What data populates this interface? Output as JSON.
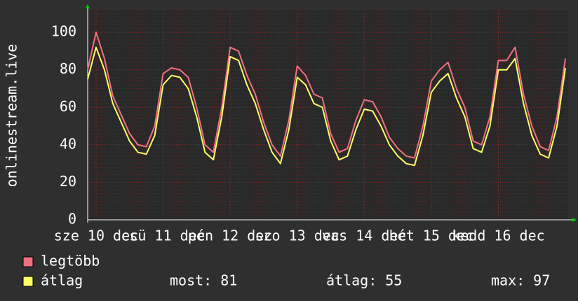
{
  "chart_data": {
    "type": "line",
    "y_label": "onlinestream.live",
    "x": [
      0,
      3,
      6,
      9,
      12,
      15,
      18,
      21,
      24,
      27,
      30,
      33,
      36,
      39,
      42,
      45,
      48,
      51,
      54,
      57,
      60,
      63,
      66,
      69,
      72,
      75,
      78,
      81,
      84,
      87,
      90,
      93,
      96,
      99,
      102,
      105,
      108,
      111,
      114,
      117,
      120,
      123,
      126,
      129,
      132,
      135,
      138,
      141,
      144,
      147,
      150,
      153,
      156,
      159,
      162,
      165,
      168,
      171
    ],
    "xlim": [
      0,
      172
    ],
    "xticks": [
      {
        "value": 3,
        "label": "sze 10 dec"
      },
      {
        "value": 27,
        "label": "csü 11 dec"
      },
      {
        "value": 51,
        "label": "pén 12 dec"
      },
      {
        "value": 75,
        "label": "szo 13 dec"
      },
      {
        "value": 99,
        "label": "vas 14 dec"
      },
      {
        "value": 123,
        "label": "hét 15 dec"
      },
      {
        "value": 147,
        "label": "kedd 16 dec"
      }
    ],
    "ylim": [
      0,
      112
    ],
    "yticks": [
      0,
      20,
      40,
      60,
      80,
      100
    ],
    "grid": true,
    "series": [
      {
        "name": "legtöbb",
        "color": "#f07080",
        "values": [
          80,
          100,
          86,
          66,
          56,
          46,
          40,
          39,
          50,
          78,
          81,
          80,
          76,
          60,
          40,
          36,
          60,
          92,
          90,
          77,
          67,
          52,
          40,
          34,
          53,
          82,
          77,
          67,
          65,
          46,
          36,
          38,
          53,
          64,
          63,
          55,
          44,
          38,
          34,
          33,
          50,
          74,
          80,
          84,
          70,
          60,
          42,
          40,
          55,
          85,
          85,
          92,
          67,
          50,
          39,
          37,
          55,
          86
        ]
      },
      {
        "name": "átlag",
        "color": "#ffff66",
        "values": [
          75,
          92,
          80,
          62,
          52,
          42,
          36,
          35,
          45,
          72,
          77,
          76,
          70,
          55,
          36,
          32,
          55,
          87,
          85,
          72,
          62,
          48,
          36,
          30,
          48,
          76,
          72,
          62,
          60,
          42,
          32,
          34,
          48,
          59,
          58,
          50,
          40,
          34,
          30,
          29,
          45,
          68,
          74,
          78,
          65,
          55,
          38,
          36,
          50,
          80,
          80,
          86,
          62,
          45,
          35,
          33,
          50,
          81
        ]
      }
    ],
    "stats": [
      {
        "label": "most:",
        "value": 81
      },
      {
        "label": "átlag:",
        "value": 55
      },
      {
        "label": "max:",
        "value": 97
      }
    ]
  }
}
